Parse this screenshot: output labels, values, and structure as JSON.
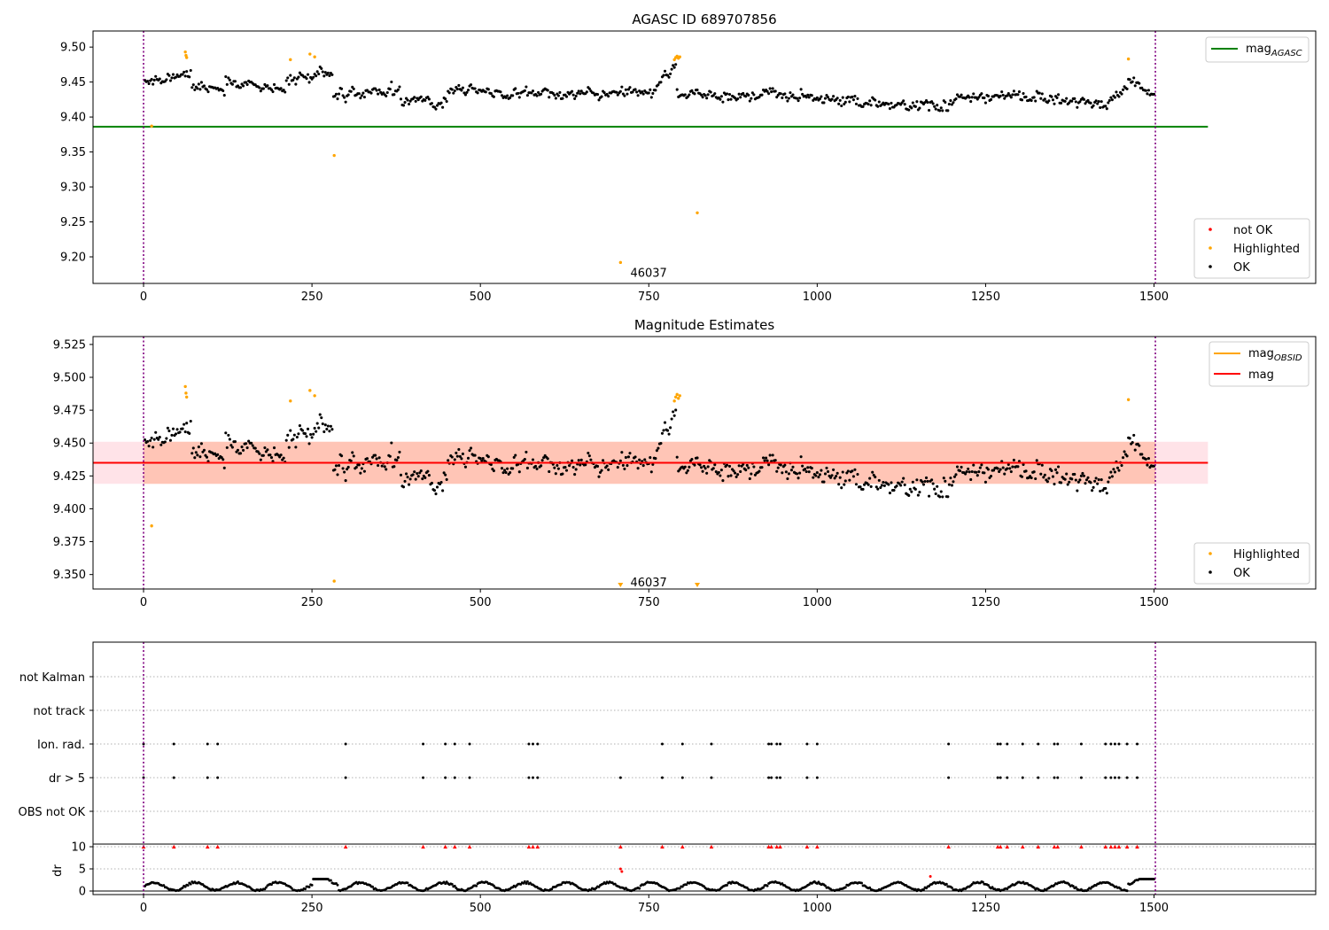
{
  "colors": {
    "ok": "#000000",
    "highlighted": "#ffa500",
    "not_ok": "#ff0000",
    "mag_agasc": "#008000",
    "mag_obsid": "#ffa500",
    "mag": "#ff0000",
    "obs_boundary": "#800080",
    "band_pink": "#ffc0cb",
    "band_orange": "#ffa07a"
  },
  "chart_data": [
    {
      "type": "scatter",
      "title": "AGASC ID 689707856",
      "xlim": [
        -75,
        1740
      ],
      "ylim": [
        9.162,
        9.523
      ],
      "xticks": [
        0,
        250,
        500,
        750,
        1000,
        1250,
        1500
      ],
      "yticks": [
        9.2,
        9.25,
        9.3,
        9.35,
        9.4,
        9.45,
        9.5
      ],
      "ytick_decimals": 2,
      "obs_boundaries_x": [
        0,
        1502
      ],
      "mag_agasc": 9.386,
      "mag_agasc_x_range": [
        -75,
        1580
      ],
      "legend_lines": [
        {
          "label": "mag",
          "sub": "AGASC",
          "color": "mag_agasc"
        }
      ],
      "legend_points": [
        {
          "label": "not OK",
          "color": "not_ok"
        },
        {
          "label": "Highlighted",
          "color": "highlighted"
        },
        {
          "label": "OK",
          "color": "ok"
        }
      ],
      "annotations": [
        {
          "text": "46037",
          "x": 720,
          "y": 9.178
        }
      ],
      "highlighted_points": [
        {
          "x": 12,
          "y": 9.387
        },
        {
          "x": 62,
          "y": 9.493
        },
        {
          "x": 63,
          "y": 9.488
        },
        {
          "x": 64,
          "y": 9.485
        },
        {
          "x": 218,
          "y": 9.482
        },
        {
          "x": 247,
          "y": 9.49
        },
        {
          "x": 254,
          "y": 9.486
        },
        {
          "x": 283,
          "y": 9.345
        },
        {
          "x": 708,
          "y": 9.192
        },
        {
          "x": 788,
          "y": 9.482
        },
        {
          "x": 790,
          "y": 9.485
        },
        {
          "x": 792,
          "y": 9.487
        },
        {
          "x": 794,
          "y": 9.484
        },
        {
          "x": 796,
          "y": 9.486
        },
        {
          "x": 822,
          "y": 9.263
        },
        {
          "x": 1462,
          "y": 9.483
        }
      ],
      "ok_series": {
        "x_start": 2,
        "x_end": 1500,
        "step": 2,
        "segments": [
          {
            "x0": 0,
            "x1": 70,
            "y0": 9.448,
            "y1": 9.465,
            "spread": 0.012
          },
          {
            "x0": 70,
            "x1": 120,
            "y0": 9.445,
            "y1": 9.437,
            "spread": 0.011
          },
          {
            "x0": 120,
            "x1": 210,
            "y0": 9.45,
            "y1": 9.442,
            "spread": 0.012
          },
          {
            "x0": 210,
            "x1": 280,
            "y0": 9.455,
            "y1": 9.463,
            "spread": 0.012
          },
          {
            "x0": 280,
            "x1": 380,
            "y0": 9.432,
            "y1": 9.438,
            "spread": 0.013
          },
          {
            "x0": 380,
            "x1": 450,
            "y0": 9.425,
            "y1": 9.42,
            "spread": 0.012
          },
          {
            "x0": 450,
            "x1": 600,
            "y0": 9.438,
            "y1": 9.43,
            "spread": 0.012
          },
          {
            "x0": 600,
            "x1": 760,
            "y0": 9.43,
            "y1": 9.435,
            "spread": 0.012
          },
          {
            "x0": 760,
            "x1": 790,
            "y0": 9.445,
            "y1": 9.47,
            "spread": 0.01
          },
          {
            "x0": 790,
            "x1": 900,
            "y0": 9.435,
            "y1": 9.428,
            "spread": 0.013
          },
          {
            "x0": 900,
            "x1": 1050,
            "y0": 9.435,
            "y1": 9.425,
            "spread": 0.012
          },
          {
            "x0": 1050,
            "x1": 1200,
            "y0": 9.42,
            "y1": 9.415,
            "spread": 0.012
          },
          {
            "x0": 1200,
            "x1": 1300,
            "y0": 9.425,
            "y1": 9.432,
            "spread": 0.012
          },
          {
            "x0": 1300,
            "x1": 1430,
            "y0": 9.43,
            "y1": 9.418,
            "spread": 0.012
          },
          {
            "x0": 1430,
            "x1": 1460,
            "y0": 9.415,
            "y1": 9.44,
            "spread": 0.012
          },
          {
            "x0": 1460,
            "x1": 1500,
            "y0": 9.455,
            "y1": 9.432,
            "spread": 0.012
          }
        ]
      }
    },
    {
      "type": "scatter",
      "title": "Magnitude Estimates",
      "xlim": [
        -75,
        1740
      ],
      "ylim": [
        9.339,
        9.531
      ],
      "xticks": [
        0,
        250,
        500,
        750,
        1000,
        1250,
        1500
      ],
      "yticks": [
        9.35,
        9.375,
        9.4,
        9.425,
        9.45,
        9.475,
        9.5,
        9.525
      ],
      "ytick_decimals": 3,
      "obs_boundaries_x": [
        0,
        1502
      ],
      "mag": 9.435,
      "mag_band": [
        9.419,
        9.451
      ],
      "mag_obsid_band": [
        9.419,
        9.451
      ],
      "band_x_range": [
        -75,
        1580
      ],
      "legend_lines": [
        {
          "label": "mag",
          "sub": "OBSID",
          "color": "mag_obsid"
        },
        {
          "label": "mag",
          "sub": "",
          "color": "mag"
        }
      ],
      "legend_points": [
        {
          "label": "Highlighted",
          "color": "highlighted"
        },
        {
          "label": "OK",
          "color": "ok"
        }
      ],
      "annotations": [
        {
          "text": "46037",
          "x": 720,
          "y": 9.3445
        }
      ],
      "offscale_markers": [
        {
          "x": 708
        },
        {
          "x": 822
        }
      ],
      "highlighted_points": [
        {
          "x": 12,
          "y": 9.387
        },
        {
          "x": 62,
          "y": 9.493
        },
        {
          "x": 63,
          "y": 9.488
        },
        {
          "x": 64,
          "y": 9.485
        },
        {
          "x": 218,
          "y": 9.482
        },
        {
          "x": 247,
          "y": 9.49
        },
        {
          "x": 254,
          "y": 9.486
        },
        {
          "x": 283,
          "y": 9.345
        },
        {
          "x": 788,
          "y": 9.482
        },
        {
          "x": 790,
          "y": 9.485
        },
        {
          "x": 792,
          "y": 9.487
        },
        {
          "x": 794,
          "y": 9.484
        },
        {
          "x": 796,
          "y": 9.486
        },
        {
          "x": 1462,
          "y": 9.483
        }
      ]
    },
    {
      "type": "scatter",
      "title": "",
      "xlim": [
        -75,
        1740
      ],
      "flag_rows": [
        "not Kalman",
        "not track",
        "Ion. rad.",
        "dr > 5",
        "OBS not OK"
      ],
      "flag_events_x": [
        0,
        45,
        95,
        110,
        300,
        415,
        448,
        462,
        484,
        572,
        578,
        585,
        708,
        770,
        800,
        843,
        928,
        932,
        940,
        945,
        985,
        1000,
        1195,
        1268,
        1272,
        1282,
        1305,
        1328,
        1352,
        1357,
        1392,
        1428,
        1436,
        1442,
        1448,
        1460,
        1475
      ],
      "dr_panel": {
        "ylabel": "dr",
        "ylim": [
          -0.8,
          10.6
        ],
        "yticks": [
          0,
          5,
          10
        ],
        "xticks": [
          0,
          250,
          500,
          750,
          1000,
          1250,
          1500
        ],
        "cap": 10,
        "red_points": [
          {
            "x": 708,
            "y": 5.0
          },
          {
            "x": 710,
            "y": 4.4
          },
          {
            "x": 1168,
            "y": 3.3
          }
        ]
      }
    }
  ]
}
